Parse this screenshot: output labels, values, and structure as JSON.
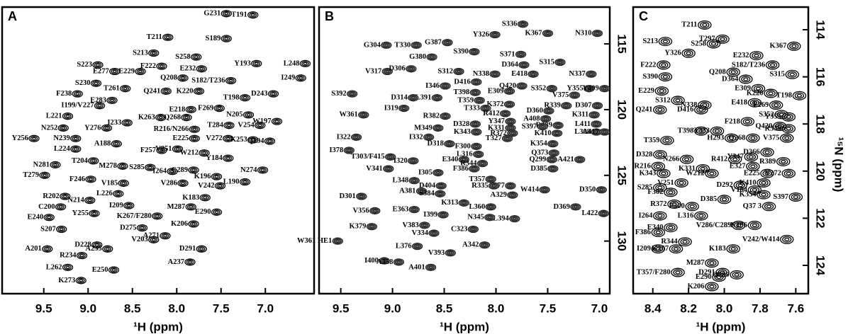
{
  "chart_data": [
    {
      "type": "scatter",
      "title": "A",
      "x_label": "¹H (ppm)",
      "color": "#000000",
      "marker_fill": "none",
      "xlim": [
        9.97,
        6.45
      ],
      "ylim": [
        134.0,
        112.2
      ],
      "xticks": [
        9.5,
        {
          "value": 9,
          "label": "9.0"
        },
        8.5,
        {
          "value": 8,
          "label": "8.0"
        },
        7.5,
        {
          "value": 7,
          "label": "7.0"
        }
      ],
      "labels": [
        "G231",
        "T191",
        "S189",
        "T211",
        "S213",
        "Y193",
        "L248",
        "I249",
        "S258",
        "E232",
        "S223",
        "E277",
        "E229",
        "F222",
        "Q208",
        "S182/T236",
        "S230",
        "T261",
        "Q241",
        "K220",
        "T198",
        "D243",
        "F238",
        "E283",
        "I199/V227",
        "E218",
        "F269",
        "L221",
        "Q268",
        "K263",
        "N205",
        "W197",
        "R216/N266",
        "T284",
        "V254",
        "N252",
        "Y276",
        "I233",
        "E225",
        "V272",
        "K253",
        "Q194",
        "Y256",
        "N239",
        "A188",
        "F257",
        "V251",
        "W212",
        "L224",
        "Y184",
        "T204",
        "M278",
        "S285",
        "I264",
        "C289",
        "K196",
        "N274",
        "N281",
        "T279",
        "V286",
        "V242",
        "L190",
        "F246",
        "V185",
        "L226",
        "K183",
        "R202",
        "N214",
        "I209",
        "M287",
        "E290",
        "C200",
        "Y255",
        "K267/F280",
        "E240",
        "K206",
        "S207",
        "D275",
        "V203",
        "A271",
        "D228",
        "A235",
        "D291",
        "A201",
        "R234",
        "A237",
        "L262",
        "E250",
        "K273"
      ],
      "x": [
        7.44,
        7.14,
        7.44,
        8.1,
        8.26,
        7.1,
        6.55,
        6.6,
        7.78,
        7.72,
        8.89,
        8.7,
        8.41,
        8.17,
        7.93,
        7.39,
        8.91,
        8.58,
        8.12,
        7.75,
        7.23,
        6.91,
        9.12,
        8.73,
        8.87,
        7.84,
        7.52,
        9.23,
        7.89,
        8.18,
        7.19,
        6.87,
        7.8,
        7.41,
        7.06,
        9.28,
        8.79,
        8.56,
        7.8,
        7.42,
        7.14,
        6.95,
        9.61,
        9.14,
        8.68,
        8.17,
        7.99,
        7.69,
        9.14,
        7.42,
        8.94,
        8.61,
        8.3,
        8.05,
        7.81,
        7.55,
        7.03,
        9.37,
        9.49,
        7.93,
        7.51,
        7.23,
        8.97,
        8.6,
        8.66,
        7.68,
        9.26,
        8.98,
        8.54,
        7.84,
        7.55,
        9.31,
        8.93,
        8.22,
        9.44,
        7.81,
        9.3,
        8.39,
        8.26,
        8.13,
        8.9,
        8.78,
        7.72,
        9.46,
        9.07,
        7.85,
        9.23,
        8.71,
        9.08
      ],
      "values": [
        112.7,
        112.8,
        114.6,
        114.5,
        115.7,
        116.5,
        116.5,
        117.6,
        116.0,
        116.9,
        116.6,
        117.1,
        117.1,
        116.7,
        117.6,
        117.8,
        118.0,
        118.4,
        118.6,
        118.6,
        119.1,
        118.8,
        118.8,
        119.3,
        119.7,
        120.0,
        119.9,
        120.5,
        120.6,
        120.6,
        120.4,
        120.9,
        121.5,
        121.2,
        121.2,
        121.4,
        121.4,
        121.0,
        122.2,
        122.2,
        122.3,
        122.4,
        122.2,
        122.2,
        122.6,
        123.1,
        123.0,
        123.3,
        123.0,
        123.7,
        123.9,
        124.3,
        124.4,
        124.7,
        124.6,
        125.1,
        124.6,
        124.2,
        125.0,
        125.6,
        125.8,
        125.5,
        125.3,
        125.6,
        126.4,
        126.7,
        126.6,
        126.9,
        127.3,
        127.4,
        127.8,
        127.4,
        127.9,
        128.1,
        128.2,
        128.7,
        129.1,
        129.0,
        129.9,
        129.6,
        130.3,
        130.6,
        130.6,
        130.6,
        131.1,
        131.6,
        132.0,
        132.2,
        133.0
      ]
    },
    {
      "type": "scatter",
      "title": "B",
      "x_label": "¹H (ppm)",
      "color": "#222222",
      "marker_fill": "#8a8a8a",
      "xlim": [
        9.71,
        6.9
      ],
      "ylim": [
        134.0,
        112.2
      ],
      "xticks": [
        9.5,
        {
          "value": 9,
          "label": "9.0"
        },
        8.5,
        {
          "value": 8,
          "label": "8.0"
        },
        7.5,
        {
          "value": 7,
          "label": "7.0"
        }
      ],
      "yticks": [
        115,
        120,
        125,
        130
      ],
      "labels": [
        "G387",
        "Y326",
        "S336",
        "K367",
        "N310",
        "G304",
        "T330",
        "S390",
        "S371",
        "D364",
        "S315",
        "G380",
        "V317",
        "D306",
        "S312",
        "N338",
        "E418",
        "N337",
        "D416",
        "Q420",
        "E309",
        "S352",
        "Y355",
        "Y409",
        "I346",
        "L391",
        "D314",
        "S392",
        "T398",
        "V375",
        "T359",
        "K372",
        "R339",
        "D307",
        "I319",
        "T333",
        "D360",
        "K311",
        "W361",
        "R412",
        "R382",
        "Y347",
        "L411",
        "M349",
        "D328",
        "K331",
        "R389",
        "L308",
        "K410",
        "A417",
        "K343",
        "R372",
        "I322",
        "I332",
        "T327",
        "D318",
        "F300",
        "K354",
        "A408",
        "S397",
        "I378",
        "T303/F415",
        "E340",
        "L316",
        "Q373",
        "A421",
        "R344",
        "Q299",
        "V341",
        "I320",
        "D385",
        "F386",
        "I305",
        "L348",
        "T357",
        "A377",
        "D404",
        "W414",
        "R335",
        "A329",
        "A381",
        "S384",
        "D301",
        "D350",
        "K313",
        "V356",
        "E363",
        "L360",
        "D369",
        "L422",
        "I399",
        "L394",
        "N345",
        "V383",
        "C323",
        "V334",
        "K379",
        "A342",
        "L376",
        "V393",
        "I400",
        "W361 HE1",
        "A358",
        "A401"
      ],
      "x": [
        8.47,
        8.01,
        7.74,
        7.5,
        7.02,
        9.06,
        8.77,
        8.21,
        7.76,
        7.73,
        7.38,
        8.62,
        9.05,
        8.82,
        8.36,
        8.01,
        7.64,
        7.08,
        8.19,
        7.75,
        7.87,
        7.46,
        7.1,
        6.95,
        8.49,
        8.57,
        8.8,
        9.39,
        8.2,
        7.24,
        8.16,
        7.87,
        7.32,
        7.02,
        8.89,
        8.1,
        7.49,
        7.05,
        9.28,
        7.91,
        8.49,
        7.86,
        7.03,
        8.56,
        8.2,
        7.86,
        7.4,
        7.03,
        7.41,
        6.95,
        8.19,
        7.84,
        9.35,
        8.65,
        7.89,
        8.45,
        8.19,
        7.45,
        7.52,
        7.55,
        9.42,
        9.02,
        8.31,
        8.17,
        7.44,
        7.19,
        8.13,
        7.46,
        9.04,
        8.8,
        7.45,
        8.21,
        8.56,
        8.79,
        8.05,
        7.86,
        8.53,
        7.53,
        8.02,
        7.84,
        8.72,
        8.54,
        9.3,
        6.98,
        8.31,
        9.17,
        8.79,
        8.05,
        7.23,
        6.96,
        8.51,
        7.82,
        8.06,
        8.69,
        8.22,
        8.6,
        9.2,
        8.11,
        8.76,
        8.44,
        9.08,
        9.53,
        8.94,
        8.63
      ],
      "values": [
        114.9,
        114.3,
        113.5,
        114.2,
        114.2,
        115.1,
        115.1,
        115.6,
        115.8,
        116.6,
        116.4,
        116.0,
        117.1,
        116.9,
        117.1,
        117.3,
        117.3,
        117.3,
        117.9,
        118.2,
        118.6,
        118.4,
        118.4,
        118.4,
        118.2,
        119.1,
        119.1,
        118.8,
        118.7,
        118.9,
        119.3,
        119.6,
        119.7,
        119.7,
        119.9,
        119.9,
        120.1,
        120.4,
        120.4,
        120.3,
        120.5,
        120.9,
        121.1,
        121.4,
        121.1,
        121.4,
        121.2,
        121.7,
        121.8,
        121.7,
        121.7,
        121.8,
        122.1,
        122.1,
        122.2,
        122.6,
        122.8,
        122.6,
        120.7,
        121.3,
        123.1,
        123.6,
        123.8,
        123.4,
        123.3,
        123.8,
        124.1,
        123.8,
        124.5,
        123.9,
        124.5,
        124.5,
        124.8,
        125.4,
        125.3,
        125.8,
        125.8,
        126.1,
        125.8,
        126.5,
        126.2,
        126.4,
        126.6,
        126.1,
        127.1,
        127.7,
        127.6,
        127.4,
        127.4,
        127.9,
        128.0,
        128.3,
        128.2,
        128.8,
        129.1,
        129.4,
        128.9,
        130.3,
        130.4,
        130.9,
        131.5,
        130.0,
        131.6,
        132.0
      ]
    },
    {
      "type": "scatter",
      "title": "C",
      "x_label": "¹H (ppm)",
      "y_label": "¹⁵N (ppm)",
      "color": "#000000",
      "marker_fill": "none",
      "xlim": [
        8.51,
        7.53
      ],
      "ylim": [
        125.2,
        113.04
      ],
      "xticks": [
        8.4,
        8.2,
        {
          "value": 8,
          "label": "8.0"
        },
        7.8,
        7.6
      ],
      "yticks": [
        114,
        116,
        118,
        120,
        122,
        124
      ],
      "labels": [
        "T211",
        "S213",
        "T297",
        "S258",
        "K367",
        "Y326",
        "F222",
        "E232",
        "S182/T236",
        "Q208",
        "S390",
        "E229",
        "D364",
        "S315",
        "E309",
        "S312",
        "T198",
        "K220",
        "N338",
        "Q241",
        "D416",
        "F269",
        "S352",
        "E418",
        "Y355",
        "F218",
        "Q420",
        "R339",
        "V375",
        "T398",
        "T333",
        "H293",
        "Q268",
        "T359",
        "D328",
        "N266",
        "Y347",
        "D366",
        "R389",
        "R412",
        "R216",
        "K343",
        "K331",
        "W212",
        "E327",
        "E225",
        "V272",
        "V251",
        "D292",
        "K410",
        "S285",
        "F302",
        "K354",
        "V184",
        "S397",
        "D385",
        "R372",
        "F300",
        "Q37 3",
        "L316",
        "I264",
        "E340",
        "F386",
        "V286/C289",
        "K196",
        "R344",
        "V242/W414",
        "I209",
        "K267",
        "K183",
        "T357/F280",
        "M287",
        "D291",
        "E290",
        "Q299",
        "K206"
      ],
      "x": [
        8.11,
        8.33,
        8.01,
        8.06,
        7.61,
        8.2,
        8.34,
        7.82,
        7.73,
        7.95,
        8.33,
        8.35,
        7.88,
        7.62,
        7.81,
        8.26,
        7.58,
        7.74,
        8.11,
        8.36,
        8.13,
        7.71,
        7.68,
        7.83,
        7.64,
        7.87,
        7.69,
        7.64,
        7.65,
        8.13,
        8.04,
        7.96,
        7.84,
        8.32,
        8.36,
        8.21,
        7.85,
        7.76,
        7.67,
        7.94,
        8.37,
        8.34,
        8.12,
        8.07,
        7.84,
        7.76,
        7.64,
        8.24,
        7.91,
        7.78,
        8.36,
        8.3,
        7.78,
        7.83,
        7.6,
        8.0,
        8.28,
        8.18,
        7.75,
        8.13,
        8.36,
        8.3,
        8.37,
        7.92,
        7.83,
        8.22,
        7.65,
        8.37,
        8.27,
        7.95,
        8.26,
        8.07,
        8.01,
        8.03,
        7.93,
        8.07
      ],
      "values": [
        113.8,
        114.5,
        114.4,
        114.6,
        114.7,
        115.0,
        115.5,
        115.1,
        115.5,
        115.8,
        116.0,
        116.6,
        116.1,
        115.9,
        116.5,
        117.0,
        116.8,
        116.7,
        117.2,
        117.4,
        117.4,
        117.2,
        117.6,
        117.1,
        117.7,
        117.9,
        118.1,
        118.2,
        118.6,
        118.3,
        118.3,
        118.6,
        118.6,
        118.7,
        119.3,
        119.5,
        119.4,
        119.2,
        119.6,
        119.5,
        119.8,
        120.1,
        119.9,
        120.1,
        119.8,
        120.1,
        120.1,
        120.5,
        120.6,
        120.5,
        120.7,
        120.9,
        121.0,
        120.8,
        121.1,
        121.2,
        121.4,
        121.5,
        121.5,
        121.9,
        121.9,
        122.4,
        122.6,
        122.3,
        122.3,
        123.0,
        122.9,
        123.3,
        123.3,
        123.3,
        124.3,
        123.9,
        124.3,
        124.5,
        124.4,
        124.9
      ]
    }
  ]
}
